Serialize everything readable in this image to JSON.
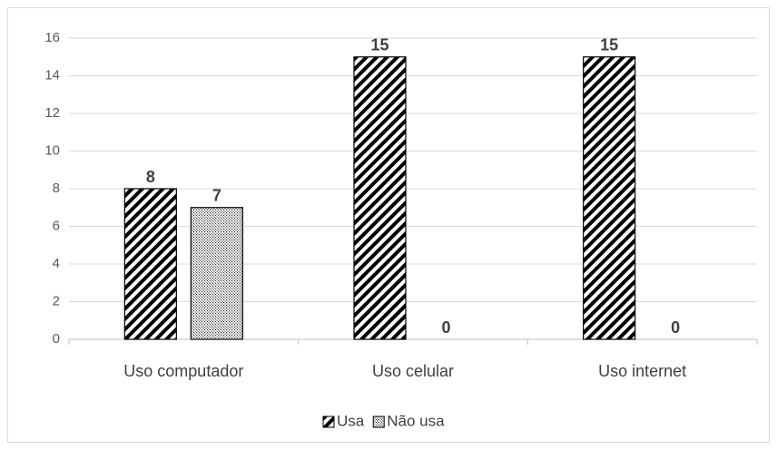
{
  "chart_data": {
    "type": "bar",
    "categories": [
      "Uso computador",
      "Uso celular",
      "Uso internet"
    ],
    "series": [
      {
        "name": "Usa",
        "color": "#000000",
        "values": [
          8,
          15,
          15
        ]
      },
      {
        "name": "Não usa",
        "color": "#000000",
        "values": [
          7,
          0,
          0
        ]
      }
    ],
    "ylim": [
      0,
      16
    ],
    "yticks": [
      0,
      2,
      4,
      6,
      8,
      10,
      12,
      14,
      16
    ],
    "grid": true,
    "legend": "bottom"
  }
}
